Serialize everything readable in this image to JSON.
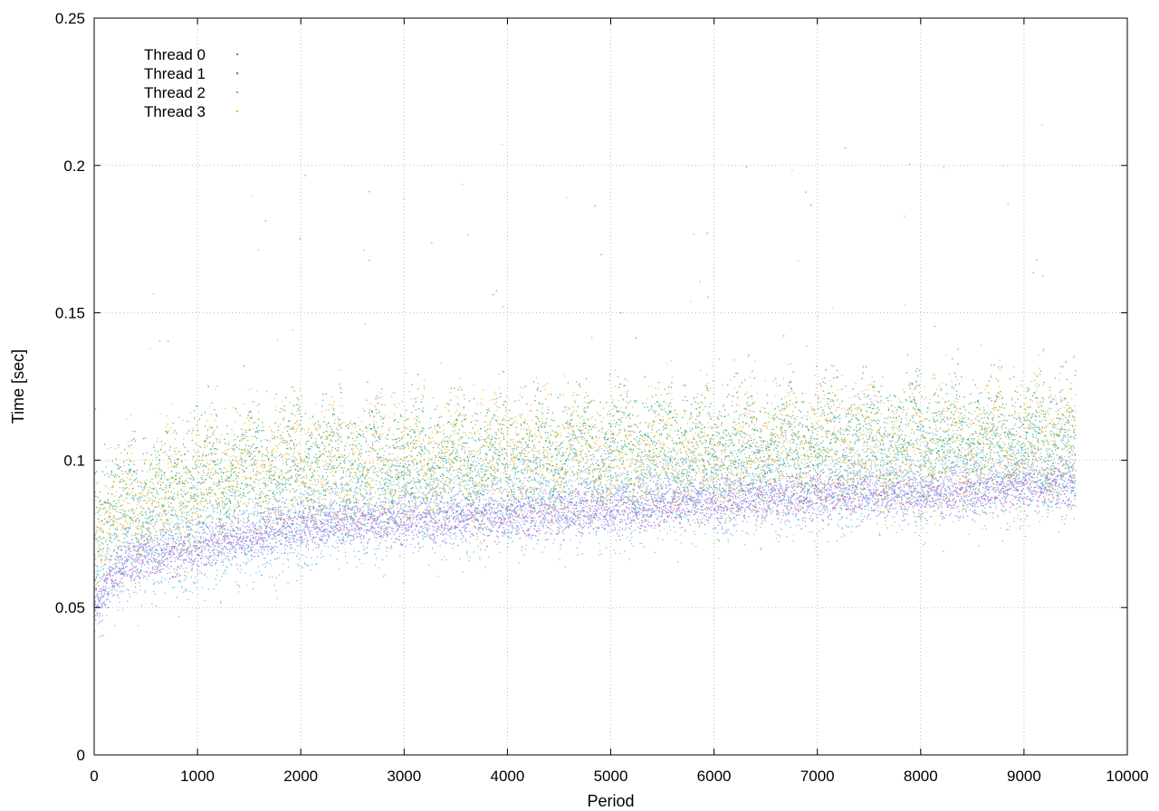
{
  "chart_data": {
    "type": "scatter",
    "title": "",
    "xlabel": "Period",
    "ylabel": "Time [sec]",
    "xlim": [
      0,
      10000
    ],
    "ylim": [
      0,
      0.25
    ],
    "xticks": [
      "0",
      "1000",
      "2000",
      "3000",
      "4000",
      "5000",
      "6000",
      "7000",
      "8000",
      "9000",
      "10000"
    ],
    "yticks": [
      "0",
      "0.05",
      "0.1",
      "0.15",
      "0.2",
      "0.25"
    ],
    "grid": true,
    "legend_position": "top-left",
    "x_max_data": 9500,
    "series": [
      {
        "name": "Thread 0",
        "color": "#9b59d6",
        "trend": [
          [
            0,
            0.05
          ],
          [
            200,
            0.062
          ],
          [
            500,
            0.068
          ],
          [
            1000,
            0.07
          ],
          [
            2000,
            0.078
          ],
          [
            3000,
            0.08
          ],
          [
            4000,
            0.081
          ],
          [
            5000,
            0.084
          ],
          [
            6000,
            0.086
          ],
          [
            7000,
            0.088
          ],
          [
            8000,
            0.089
          ],
          [
            9000,
            0.091
          ],
          [
            9500,
            0.092
          ]
        ],
        "spread": 0.004
      },
      {
        "name": "Thread 1",
        "color": "#1f9e73",
        "trend": [
          [
            0,
            0.08
          ],
          [
            1000,
            0.095
          ],
          [
            2000,
            0.098
          ],
          [
            3000,
            0.1
          ],
          [
            4000,
            0.102
          ],
          [
            5000,
            0.103
          ],
          [
            6000,
            0.105
          ],
          [
            7000,
            0.106
          ],
          [
            8000,
            0.108
          ],
          [
            9000,
            0.108
          ],
          [
            9500,
            0.11
          ]
        ],
        "spread": 0.01
      },
      {
        "name": "Thread 2",
        "color": "#56b4e9",
        "trend": [
          [
            0,
            0.055
          ],
          [
            200,
            0.065
          ],
          [
            500,
            0.07
          ],
          [
            1000,
            0.072
          ],
          [
            2000,
            0.08
          ],
          [
            3000,
            0.084
          ],
          [
            4000,
            0.086
          ],
          [
            5000,
            0.089
          ],
          [
            6000,
            0.091
          ],
          [
            7000,
            0.093
          ],
          [
            8000,
            0.094
          ],
          [
            9000,
            0.096
          ],
          [
            9500,
            0.097
          ]
        ],
        "spread": 0.009
      },
      {
        "name": "Thread 3",
        "color": "#e6b422",
        "trend": [
          [
            0,
            0.08
          ],
          [
            1000,
            0.094
          ],
          [
            2000,
            0.098
          ],
          [
            3000,
            0.1
          ],
          [
            4000,
            0.101
          ],
          [
            5000,
            0.102
          ],
          [
            6000,
            0.103
          ],
          [
            7000,
            0.104
          ],
          [
            8000,
            0.105
          ],
          [
            9000,
            0.106
          ],
          [
            9500,
            0.108
          ]
        ],
        "spread": 0.011
      }
    ]
  }
}
